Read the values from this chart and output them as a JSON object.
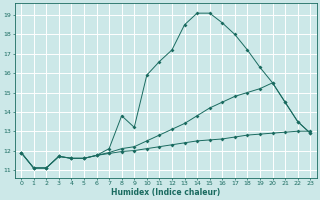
{
  "xlabel": "Humidex (Indice chaleur)",
  "bg_color": "#cce8e8",
  "grid_color": "#ffffff",
  "line_color": "#1a6b60",
  "xlim": [
    -0.5,
    23.5
  ],
  "ylim": [
    10.6,
    19.6
  ],
  "xticks": [
    0,
    1,
    2,
    3,
    4,
    5,
    6,
    7,
    8,
    9,
    10,
    11,
    12,
    13,
    14,
    15,
    16,
    17,
    18,
    19,
    20,
    21,
    22,
    23
  ],
  "yticks": [
    11,
    12,
    13,
    14,
    15,
    16,
    17,
    18,
    19
  ],
  "curve1_x": [
    0,
    1,
    2,
    3,
    4,
    5,
    6,
    7,
    8,
    9,
    10,
    11,
    12,
    13,
    14,
    15,
    16,
    17,
    18,
    19,
    20,
    21,
    22,
    23
  ],
  "curve1_y": [
    11.9,
    11.1,
    11.1,
    11.7,
    11.6,
    11.6,
    11.75,
    12.1,
    13.8,
    13.2,
    15.9,
    16.6,
    17.2,
    18.5,
    19.1,
    19.1,
    18.6,
    18.0,
    17.2,
    16.3,
    15.5,
    14.5,
    13.5,
    12.9
  ],
  "curve2_x": [
    0,
    1,
    2,
    3,
    4,
    5,
    6,
    7,
    8,
    9,
    10,
    11,
    12,
    13,
    14,
    15,
    16,
    17,
    18,
    19,
    20,
    21,
    22,
    23
  ],
  "curve2_y": [
    11.9,
    11.1,
    11.1,
    11.7,
    11.6,
    11.6,
    11.75,
    11.9,
    12.1,
    12.2,
    12.5,
    12.8,
    13.1,
    13.4,
    13.8,
    14.2,
    14.5,
    14.8,
    15.0,
    15.2,
    15.5,
    14.5,
    13.5,
    12.9
  ],
  "curve3_x": [
    0,
    1,
    2,
    3,
    4,
    5,
    6,
    7,
    8,
    9,
    10,
    11,
    12,
    13,
    14,
    15,
    16,
    17,
    18,
    19,
    20,
    21,
    22,
    23
  ],
  "curve3_y": [
    11.9,
    11.1,
    11.1,
    11.7,
    11.6,
    11.6,
    11.75,
    11.85,
    11.95,
    12.0,
    12.1,
    12.2,
    12.3,
    12.4,
    12.5,
    12.55,
    12.6,
    12.7,
    12.8,
    12.85,
    12.9,
    12.95,
    13.0,
    13.0
  ]
}
